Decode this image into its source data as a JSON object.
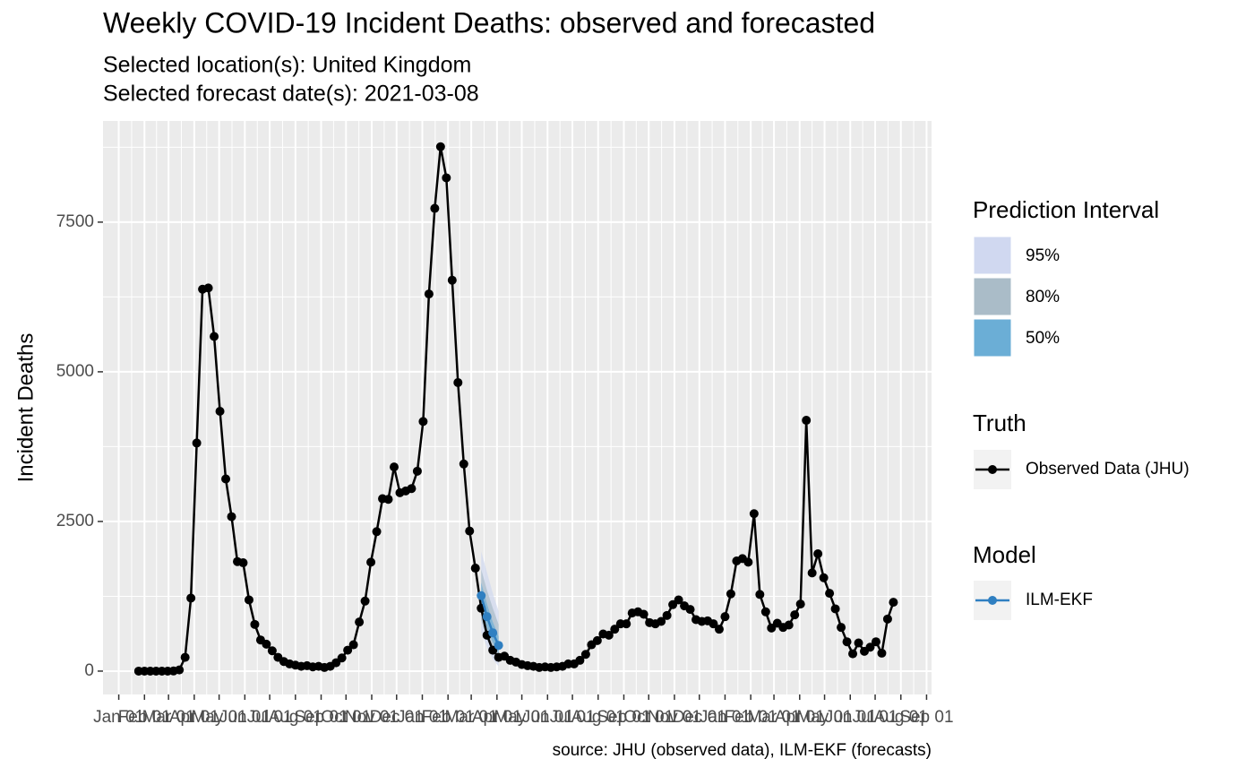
{
  "chart_data": {
    "type": "line",
    "title": "Weekly COVID-19 Incident Deaths: observed and forecasted",
    "subtitle": [
      "Selected location(s): United Kingdom",
      "Selected forecast date(s): 2021-03-08"
    ],
    "y_label": "Incident Deaths",
    "caption": "source: JHU (observed data), ILM-EKF (forecasts)",
    "grid": true,
    "xlim": [
      "2019-12-13",
      "2022-09-07"
    ],
    "ylim": [
      -390,
      9190
    ],
    "yticks": [
      0,
      2500,
      5000,
      7500
    ],
    "xticks": [
      {
        "value": "2020-01-01",
        "label": "Jan 01"
      },
      {
        "value": "2020-02-01",
        "label": "Feb 01"
      },
      {
        "value": "2020-03-01",
        "label": "Mar 01"
      },
      {
        "value": "2020-04-01",
        "label": "Apr 01"
      },
      {
        "value": "2020-05-01",
        "label": "May 01"
      },
      {
        "value": "2020-06-01",
        "label": "Jun 01"
      },
      {
        "value": "2020-07-01",
        "label": "Jul 01"
      },
      {
        "value": "2020-08-01",
        "label": "Aug 01"
      },
      {
        "value": "2020-09-01",
        "label": "Sep 01"
      },
      {
        "value": "2020-10-01",
        "label": "Oct 01"
      },
      {
        "value": "2020-11-01",
        "label": "Nov 01"
      },
      {
        "value": "2020-12-01",
        "label": "Dec 01"
      },
      {
        "value": "2021-01-01",
        "label": "Jan 01"
      },
      {
        "value": "2021-02-01",
        "label": "Feb 01"
      },
      {
        "value": "2021-03-01",
        "label": "Mar 01"
      },
      {
        "value": "2021-04-01",
        "label": "Apr 01"
      },
      {
        "value": "2021-05-01",
        "label": "May 01"
      },
      {
        "value": "2021-06-01",
        "label": "Jun 01"
      },
      {
        "value": "2021-07-01",
        "label": "Jul 01"
      },
      {
        "value": "2021-08-01",
        "label": "Aug 01"
      },
      {
        "value": "2021-09-01",
        "label": "Sep 01"
      },
      {
        "value": "2021-10-01",
        "label": "Oct 01"
      },
      {
        "value": "2021-11-01",
        "label": "Nov 01"
      },
      {
        "value": "2021-12-01",
        "label": "Dec 01"
      },
      {
        "value": "2022-01-01",
        "label": "Jan 01"
      },
      {
        "value": "2022-02-01",
        "label": "Feb 01"
      },
      {
        "value": "2022-03-01",
        "label": "Mar 01"
      },
      {
        "value": "2022-04-01",
        "label": "Apr 01"
      },
      {
        "value": "2022-05-01",
        "label": "May 01"
      },
      {
        "value": "2022-06-01",
        "label": "Jun 01"
      },
      {
        "value": "2022-07-01",
        "label": "Jul 01"
      },
      {
        "value": "2022-08-01",
        "label": "Aug 01"
      },
      {
        "value": "2022-09-01",
        "label": "Sep 01"
      }
    ],
    "legend": {
      "interval_title": "Prediction Interval",
      "truth_title": "Truth",
      "model_title": "Model"
    },
    "series": [
      {
        "name": "Observed Data (JHU)",
        "color": "#000000",
        "x": [
          "2020-01-25",
          "2020-02-01",
          "2020-02-08",
          "2020-02-15",
          "2020-02-22",
          "2020-02-29",
          "2020-03-07",
          "2020-03-14",
          "2020-03-21",
          "2020-03-28",
          "2020-04-04",
          "2020-04-11",
          "2020-04-18",
          "2020-04-25",
          "2020-05-02",
          "2020-05-09",
          "2020-05-16",
          "2020-05-23",
          "2020-05-30",
          "2020-06-06",
          "2020-06-13",
          "2020-06-20",
          "2020-06-27",
          "2020-07-04",
          "2020-07-11",
          "2020-07-18",
          "2020-07-25",
          "2020-08-01",
          "2020-08-08",
          "2020-08-15",
          "2020-08-22",
          "2020-08-29",
          "2020-09-05",
          "2020-09-12",
          "2020-09-19",
          "2020-09-26",
          "2020-10-03",
          "2020-10-10",
          "2020-10-17",
          "2020-10-24",
          "2020-10-31",
          "2020-11-07",
          "2020-11-14",
          "2020-11-21",
          "2020-11-28",
          "2020-12-05",
          "2020-12-12",
          "2020-12-19",
          "2020-12-26",
          "2021-01-02",
          "2021-01-09",
          "2021-01-16",
          "2021-01-23",
          "2021-01-30",
          "2021-02-06",
          "2021-02-13",
          "2021-02-20",
          "2021-02-27",
          "2021-03-06",
          "2021-03-13",
          "2021-03-20",
          "2021-03-27",
          "2021-04-03",
          "2021-04-10",
          "2021-04-17",
          "2021-04-24",
          "2021-05-01",
          "2021-05-08",
          "2021-05-15",
          "2021-05-22",
          "2021-05-29",
          "2021-06-05",
          "2021-06-12",
          "2021-06-19",
          "2021-06-26",
          "2021-07-03",
          "2021-07-10",
          "2021-07-17",
          "2021-07-24",
          "2021-07-31",
          "2021-08-07",
          "2021-08-14",
          "2021-08-21",
          "2021-08-28",
          "2021-09-04",
          "2021-09-11",
          "2021-09-18",
          "2021-09-25",
          "2021-10-02",
          "2021-10-09",
          "2021-10-16",
          "2021-10-23",
          "2021-10-30",
          "2021-11-06",
          "2021-11-13",
          "2021-11-20",
          "2021-11-27",
          "2021-12-04",
          "2021-12-11",
          "2021-12-18",
          "2021-12-25",
          "2022-01-01",
          "2022-01-08",
          "2022-01-15",
          "2022-01-22",
          "2022-01-29",
          "2022-02-05",
          "2022-02-12",
          "2022-02-19",
          "2022-02-26",
          "2022-03-05",
          "2022-03-12",
          "2022-03-19",
          "2022-03-26",
          "2022-04-02",
          "2022-04-09",
          "2022-04-16",
          "2022-04-23",
          "2022-04-30",
          "2022-05-07",
          "2022-05-14",
          "2022-05-21",
          "2022-05-28",
          "2022-06-04",
          "2022-06-11",
          "2022-06-18",
          "2022-06-25",
          "2022-07-02",
          "2022-07-09",
          "2022-07-16",
          "2022-07-23"
        ],
        "values": [
          0,
          0,
          0,
          0,
          0,
          0,
          2,
          20,
          230,
          1220,
          3810,
          6380,
          6400,
          5590,
          4340,
          3210,
          2580,
          1830,
          1810,
          1190,
          780,
          520,
          450,
          340,
          230,
          160,
          120,
          100,
          80,
          90,
          70,
          80,
          60,
          80,
          140,
          220,
          350,
          440,
          820,
          1170,
          1820,
          2330,
          2880,
          2870,
          3410,
          2980,
          3010,
          3050,
          3340,
          4170,
          6300,
          7730,
          8760,
          8240,
          6530,
          4820,
          3460,
          2340,
          1720,
          1050,
          600,
          350,
          230,
          250,
          180,
          150,
          110,
          90,
          80,
          60,
          70,
          60,
          70,
          80,
          120,
          120,
          180,
          280,
          440,
          510,
          620,
          600,
          700,
          790,
          790,
          970,
          990,
          950,
          810,
          790,
          830,
          930,
          1110,
          1190,
          1090,
          1030,
          860,
          830,
          840,
          790,
          700,
          910,
          1290,
          1840,
          1880,
          1820,
          2630,
          1280,
          990,
          720,
          800,
          730,
          770,
          940,
          1120,
          4190,
          1640,
          1960,
          1560,
          1300,
          1040,
          730,
          490,
          290,
          470,
          330,
          400,
          490,
          300,
          870,
          1150
        ]
      },
      {
        "name": "ILM-EKF",
        "color": "#2f7fc1",
        "x": [
          "2021-03-13",
          "2021-03-20",
          "2021-03-27",
          "2021-04-03"
        ],
        "values": [
          1260,
          910,
          640,
          430
        ],
        "intervals": [
          {
            "name": "95%",
            "color": "#d0d8f0",
            "lower": [
              650,
              400,
              200,
              80
            ],
            "upper": [
              2000,
              1650,
              1300,
              1000
            ]
          },
          {
            "name": "80%",
            "color": "#aabcc8",
            "lower": [
              850,
              550,
              330,
              180
            ],
            "upper": [
              1700,
              1350,
              1050,
              780
            ]
          },
          {
            "name": "50%",
            "color": "#6baed6",
            "lower": [
              1050,
              720,
              480,
              300
            ],
            "upper": [
              1480,
              1120,
              820,
              580
            ]
          }
        ]
      }
    ]
  }
}
